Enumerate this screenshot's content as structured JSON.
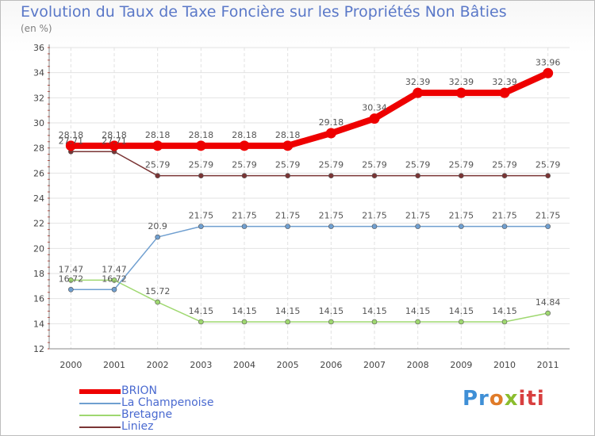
{
  "header": {
    "title": "Evolution du Taux de Taxe Foncière sur les Propriétés Non Bâties",
    "unit": "(en %)"
  },
  "logo": {
    "p1": "Pr",
    "p2": "o",
    "p3": "x",
    "p4": "iti"
  },
  "chart_data": {
    "type": "line",
    "title": "Evolution du Taux de Taxe Foncière sur les Propriétés Non Bâties",
    "ylabel": "(en %)",
    "xlabel": "",
    "ylim": [
      12,
      36
    ],
    "yticks": [
      "12",
      "14",
      "16",
      "18",
      "20",
      "22",
      "24",
      "26",
      "28",
      "30",
      "32",
      "34",
      "36"
    ],
    "grid": true,
    "legend_position": "bottom-left",
    "categories": [
      "2000",
      "2001",
      "2002",
      "2003",
      "2004",
      "2005",
      "2006",
      "2007",
      "2008",
      "2009",
      "2010",
      "2011"
    ],
    "series": [
      {
        "name": "BRION",
        "color": "#ee0000",
        "values": [
          28.18,
          28.18,
          28.18,
          28.18,
          28.18,
          28.18,
          29.18,
          30.34,
          32.39,
          32.39,
          32.39,
          33.96
        ],
        "labels": [
          "28.18",
          "28.18",
          "28.18",
          "28.18",
          "28.18",
          "28.18",
          "29.18",
          "30.34",
          "32.39",
          "32.39",
          "32.39",
          "33.96"
        ]
      },
      {
        "name": "La Champenoise",
        "color": "#6f9fd0",
        "values": [
          16.72,
          16.72,
          20.9,
          21.75,
          21.75,
          21.75,
          21.75,
          21.75,
          21.75,
          21.75,
          21.75,
          21.75
        ],
        "labels": [
          "16.72",
          "16.72",
          "20.9",
          "21.75",
          "21.75",
          "21.75",
          "21.75",
          "21.75",
          "21.75",
          "21.75",
          "21.75",
          "21.75"
        ]
      },
      {
        "name": "Bretagne",
        "color": "#9fd870",
        "values": [
          17.47,
          17.47,
          15.72,
          14.15,
          14.15,
          14.15,
          14.15,
          14.15,
          14.15,
          14.15,
          14.15,
          14.84
        ],
        "labels": [
          "17.47",
          "17.47",
          "15.72",
          "14.15",
          "14.15",
          "14.15",
          "14.15",
          "14.15",
          "14.15",
          "14.15",
          "14.15",
          "14.84"
        ]
      },
      {
        "name": "Liniez",
        "color": "#7a3434",
        "values": [
          27.71,
          27.71,
          25.79,
          25.79,
          25.79,
          25.79,
          25.79,
          25.79,
          25.79,
          25.79,
          25.79,
          25.79
        ],
        "labels": [
          "27.71",
          "27.71",
          "25.79",
          "25.79",
          "25.79",
          "25.79",
          "25.79",
          "25.79",
          "25.79",
          "25.79",
          "25.79",
          "25.79"
        ]
      }
    ]
  }
}
